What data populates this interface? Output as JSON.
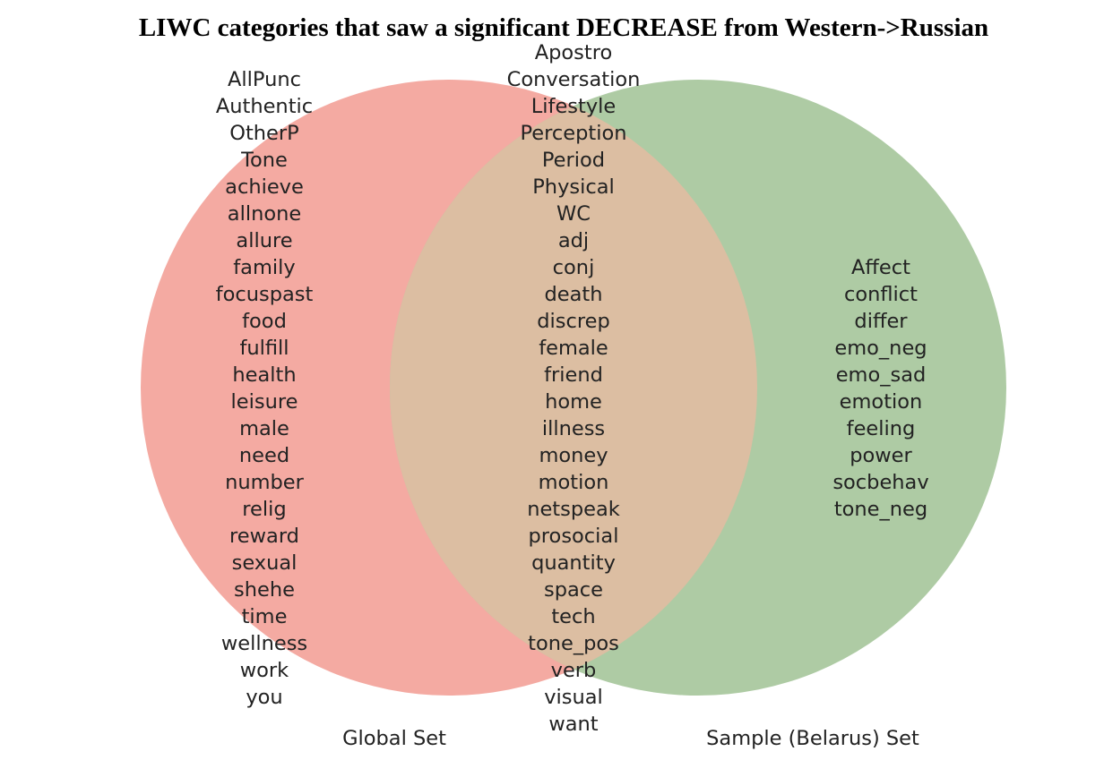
{
  "title": "LIWC categories that saw a significant DECREASE from Western->Russian",
  "colors": {
    "left_circle": "#f4aaa2",
    "right_circle": "#aecba4",
    "overlap": "#dcbea2",
    "text": "#222222",
    "title": "#000000"
  },
  "sets": {
    "left": {
      "label": "Global Set",
      "items": [
        "AllPunc",
        "Authentic",
        "OtherP",
        "Tone",
        "achieve",
        "allnone",
        "allure",
        "family",
        "focuspast",
        "food",
        "fulfill",
        "health",
        "leisure",
        "male",
        "need",
        "number",
        "relig",
        "reward",
        "sexual",
        "shehe",
        "time",
        "wellness",
        "work",
        "you"
      ]
    },
    "intersection": {
      "items": [
        "Apostro",
        "Conversation",
        "Lifestyle",
        "Perception",
        "Period",
        "Physical",
        "WC",
        "adj",
        "conj",
        "death",
        "discrep",
        "female",
        "friend",
        "home",
        "illness",
        "money",
        "motion",
        "netspeak",
        "prosocial",
        "quantity",
        "space",
        "tech",
        "tone_pos",
        "verb",
        "visual",
        "want"
      ]
    },
    "right": {
      "label": "Sample (Belarus) Set",
      "items": [
        "Affect",
        "conflict",
        "differ",
        "emo_neg",
        "emo_sad",
        "emotion",
        "feeling",
        "power",
        "socbehav",
        "tone_neg"
      ]
    }
  }
}
